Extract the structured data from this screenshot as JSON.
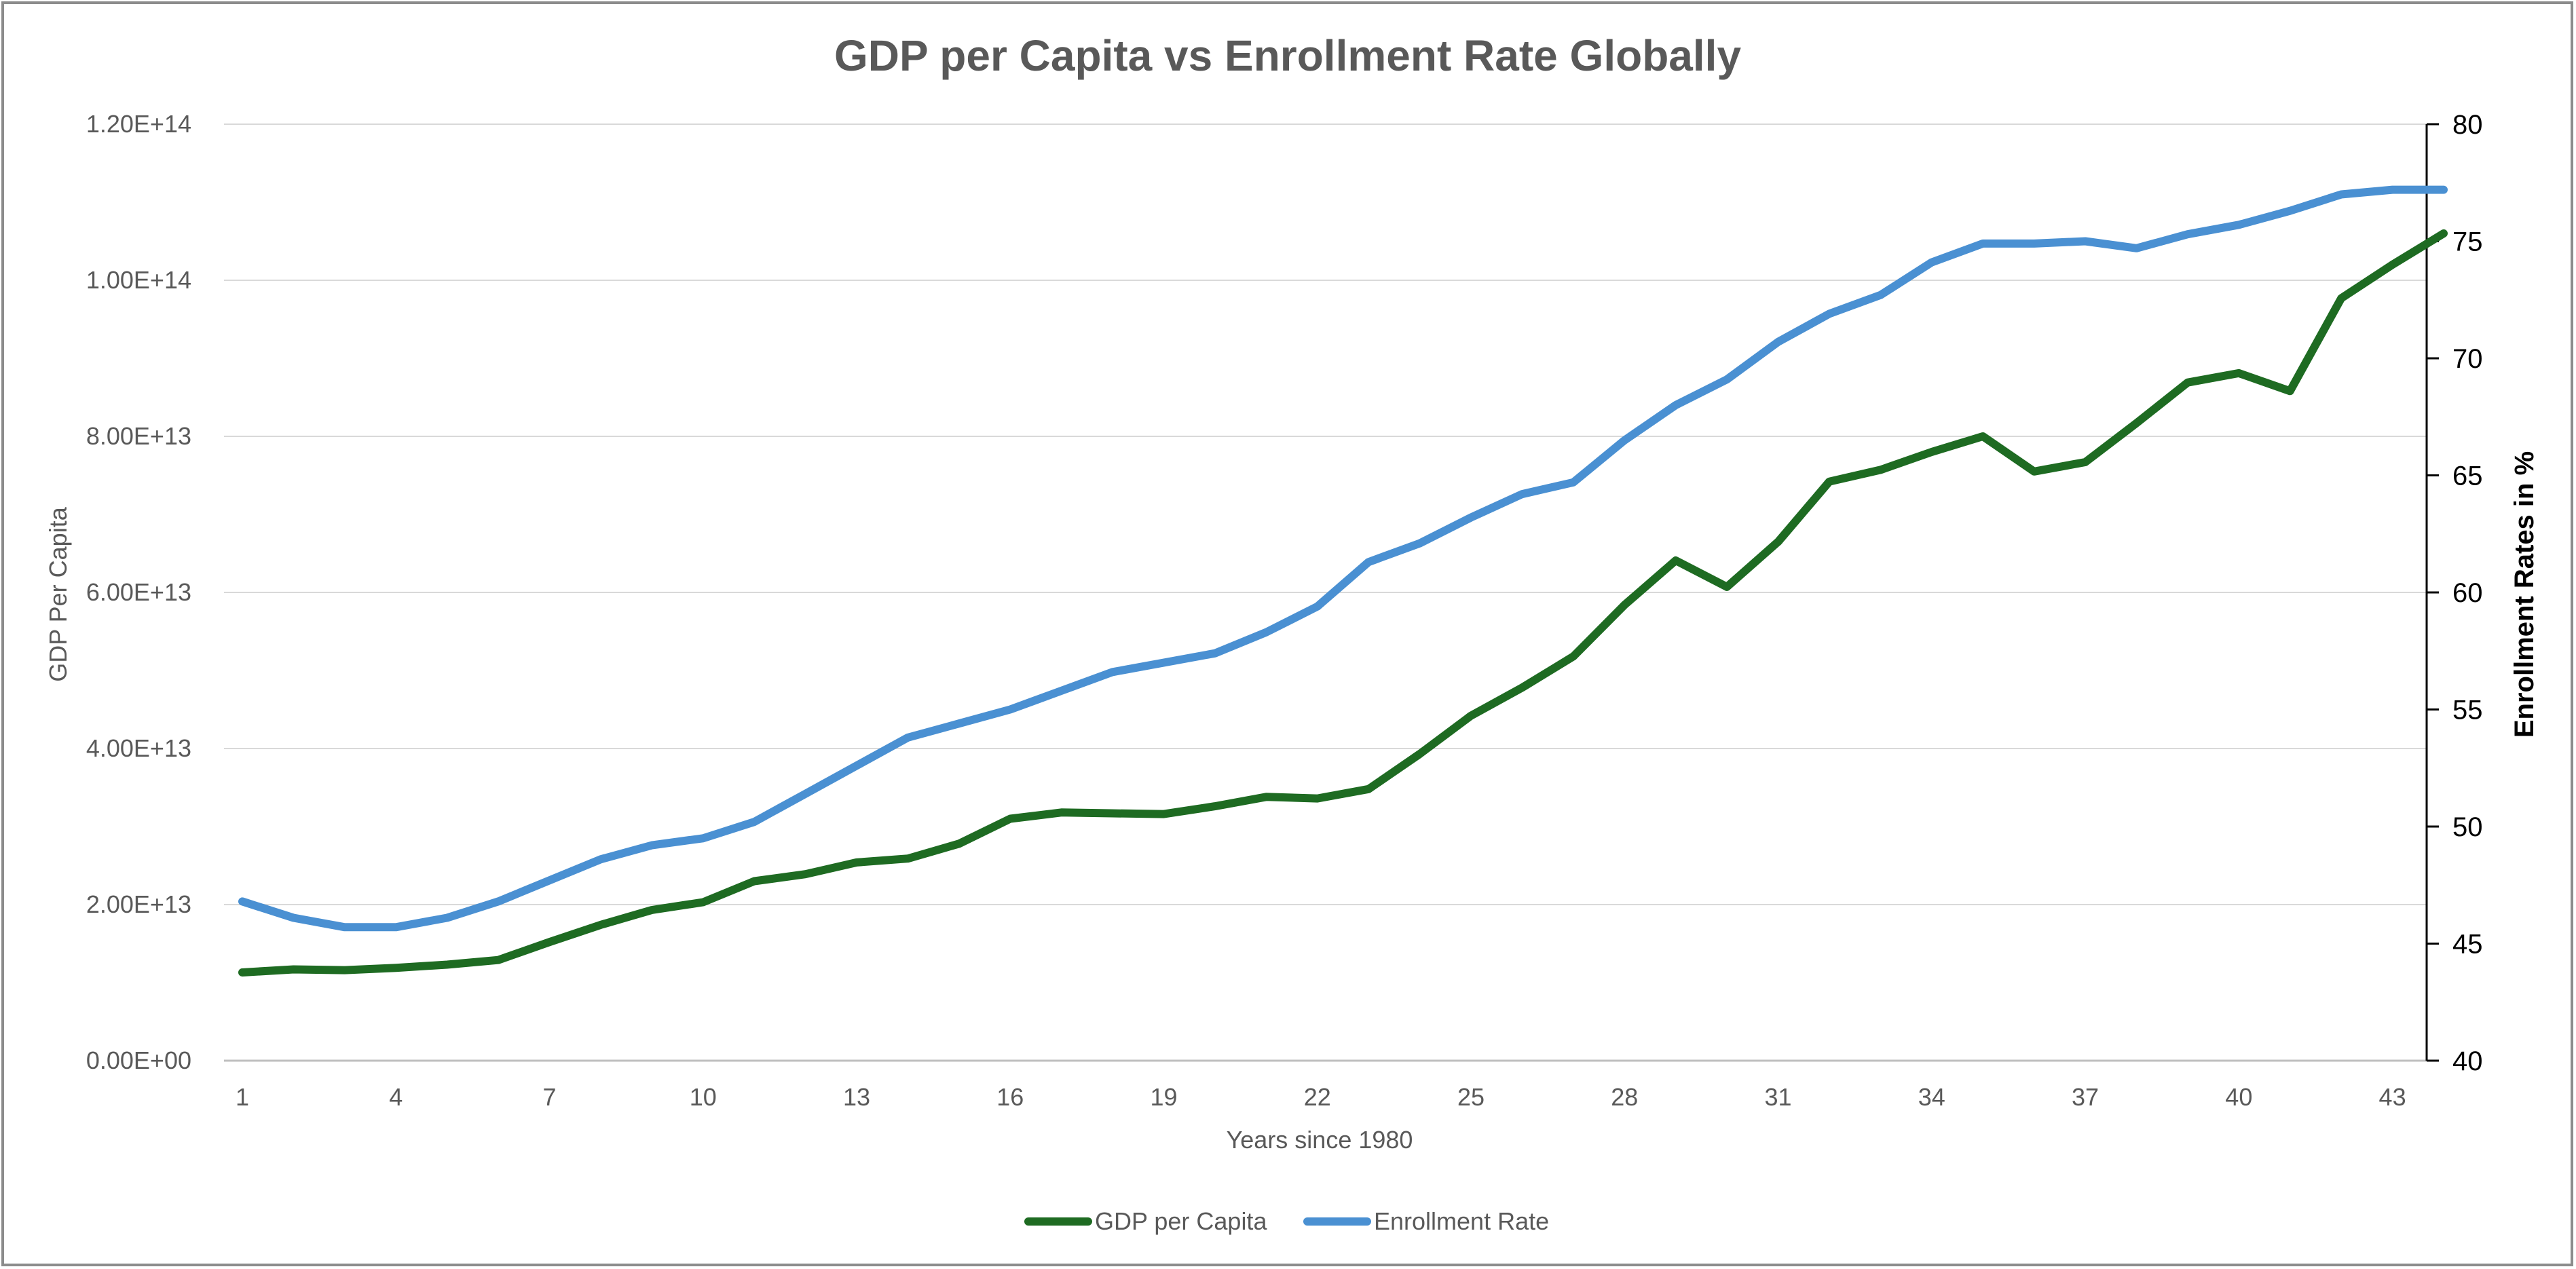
{
  "chart_data": {
    "type": "line",
    "title": "GDP per Capita vs Enrollment Rate Globally",
    "xlabel": "Years since 1980",
    "ylabel_left": "GDP Per Capita",
    "ylabel_right": "Enrollment Rates in %",
    "x": [
      1,
      2,
      3,
      4,
      5,
      6,
      7,
      8,
      9,
      10,
      11,
      12,
      13,
      14,
      15,
      16,
      17,
      18,
      19,
      20,
      21,
      22,
      23,
      24,
      25,
      26,
      27,
      28,
      29,
      30,
      31,
      32,
      33,
      34,
      35,
      36,
      37,
      38,
      39,
      40,
      41,
      42,
      43,
      44
    ],
    "x_tick_labels": [
      "1",
      "4",
      "7",
      "10",
      "13",
      "16",
      "19",
      "22",
      "25",
      "28",
      "31",
      "34",
      "37",
      "40",
      "43"
    ],
    "y_left_ticks": [
      "0.00E+00",
      "2.00E+13",
      "4.00E+13",
      "6.00E+13",
      "8.00E+13",
      "1.00E+14",
      "1.20E+14"
    ],
    "y_right_ticks": [
      "40",
      "45",
      "50",
      "55",
      "60",
      "65",
      "70",
      "75",
      "80"
    ],
    "ylim_left": [
      0,
      120000000000000
    ],
    "ylim_right": [
      40,
      80
    ],
    "grid": true,
    "legend_position": "bottom",
    "series": [
      {
        "name": "GDP per Capita",
        "axis": "left",
        "color": "#1e6b22",
        "values": [
          11300000000000.0,
          11700000000000.0,
          11600000000000.0,
          11900000000000.0,
          12300000000000.0,
          12900000000000.0,
          15200000000000.0,
          17400000000000.0,
          19300000000000.0,
          20300000000000.0,
          23000000000000.0,
          23900000000000.0,
          25400000000000.0,
          25900000000000.0,
          27800000000000.0,
          31000000000000.0,
          31800000000000.0,
          31700000000000.0,
          31600000000000.0,
          32600000000000.0,
          33800000000000.0,
          33600000000000.0,
          34800000000000.0,
          39300000000000.0,
          44200000000000.0,
          47800000000000.0,
          51800000000000.0,
          58400000000000.0,
          64100000000000.0,
          60700000000000.0,
          66500000000000.0,
          74200000000000.0,
          75700000000000.0,
          78000000000000.0,
          80000000000000.0,
          75500000000000.0,
          76700000000000.0,
          81700000000000.0,
          86900000000000.0,
          88100000000000.0,
          85800000000000.0,
          97700000000000.0,
          102000000000000.0,
          106000000000000.0
        ]
      },
      {
        "name": "Enrollment Rate",
        "axis": "right",
        "color": "#4a90d2",
        "values": [
          46.8,
          46.1,
          45.7,
          45.7,
          46.1,
          46.8,
          47.7,
          48.6,
          49.2,
          49.5,
          50.2,
          51.4,
          52.6,
          53.8,
          54.4,
          55.0,
          55.8,
          56.6,
          57.0,
          57.4,
          58.3,
          59.4,
          61.3,
          62.1,
          63.2,
          64.2,
          64.7,
          66.5,
          68.0,
          69.1,
          70.7,
          71.9,
          72.7,
          74.1,
          74.9,
          74.9,
          75.0,
          74.7,
          75.3,
          75.7,
          76.3,
          77.0,
          77.2,
          77.2
        ]
      }
    ]
  }
}
